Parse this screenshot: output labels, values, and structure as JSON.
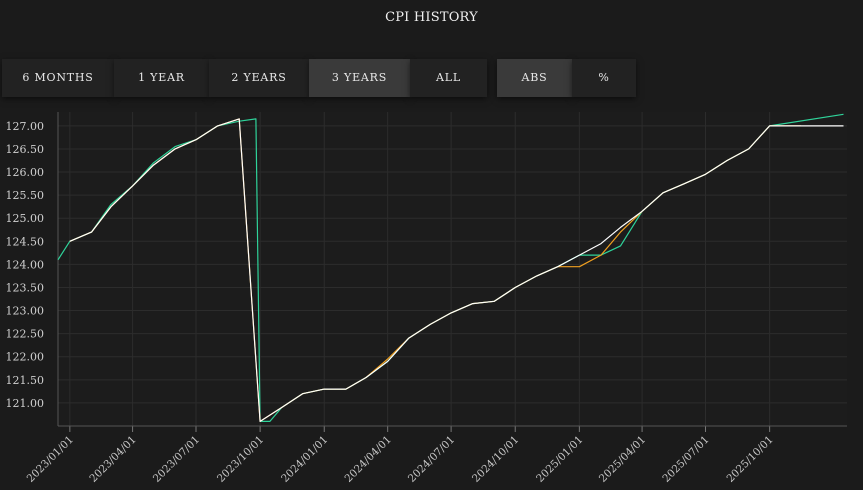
{
  "title": "CPI HISTORY",
  "range_buttons": [
    {
      "label": "6 MONTHS",
      "active": false
    },
    {
      "label": "1 YEAR",
      "active": false
    },
    {
      "label": "2 YEARS",
      "active": false
    },
    {
      "label": "3 YEARS",
      "active": true
    },
    {
      "label": "ALL",
      "active": false
    }
  ],
  "mode_buttons": [
    {
      "label": "ABS",
      "active": true
    },
    {
      "label": "%",
      "active": false
    }
  ],
  "chart_data": {
    "type": "line",
    "ylim": [
      120.5,
      127.3
    ],
    "xlim": [
      "2022-12-15",
      "2026-01-20"
    ],
    "yticks": [
      121.0,
      121.5,
      122.0,
      122.5,
      123.0,
      123.5,
      124.0,
      124.5,
      125.0,
      125.5,
      126.0,
      126.5,
      127.0
    ],
    "ytick_labels": [
      "121.00",
      "121.50",
      "122.00",
      "122.50",
      "123.00",
      "123.50",
      "124.00",
      "124.50",
      "125.00",
      "125.50",
      "126.00",
      "126.50",
      "127.00"
    ],
    "xticks": [
      "2023-01-01",
      "2023-04-01",
      "2023-07-01",
      "2023-10-01",
      "2024-01-01",
      "2024-04-01",
      "2024-07-01",
      "2024-10-01",
      "2025-01-01",
      "2025-04-01",
      "2025-07-01",
      "2025-10-01"
    ],
    "xtick_labels": [
      "2023/01/01",
      "2023/04/01",
      "2023/07/01",
      "2023/10/01",
      "2024/01/01",
      "2024/04/01",
      "2024/07/01",
      "2024/10/01",
      "2025/01/01",
      "2025/04/01",
      "2025/07/01",
      "2025/10/01"
    ],
    "grid": true,
    "series": [
      {
        "color": "#2fd39a",
        "points": [
          [
            "2022-12-15",
            124.1
          ],
          [
            "2023-01-01",
            124.5
          ],
          [
            "2023-02-01",
            124.7
          ],
          [
            "2023-03-01",
            125.3
          ],
          [
            "2023-04-01",
            125.7
          ],
          [
            "2023-05-01",
            126.2
          ],
          [
            "2023-06-01",
            126.55
          ],
          [
            "2023-07-01",
            126.7
          ],
          [
            "2023-08-01",
            127.0
          ],
          [
            "2023-09-01",
            127.1
          ],
          [
            "2023-09-25",
            127.15
          ],
          [
            "2023-10-01",
            120.6
          ],
          [
            "2023-10-15",
            120.6
          ],
          [
            "2023-11-01",
            120.9
          ],
          [
            "2023-12-01",
            121.2
          ],
          [
            "2024-01-01",
            121.3
          ],
          [
            "2024-02-01",
            121.3
          ],
          [
            "2024-03-01",
            121.55
          ],
          [
            "2024-04-01",
            121.9
          ],
          [
            "2024-05-01",
            122.4
          ],
          [
            "2024-06-01",
            122.7
          ],
          [
            "2024-07-01",
            122.95
          ],
          [
            "2024-08-01",
            123.15
          ],
          [
            "2024-09-01",
            123.2
          ],
          [
            "2024-10-01",
            123.5
          ],
          [
            "2024-11-01",
            123.75
          ],
          [
            "2024-12-01",
            123.95
          ],
          [
            "2025-01-01",
            124.2
          ],
          [
            "2025-02-01",
            124.2
          ],
          [
            "2025-03-01",
            124.4
          ],
          [
            "2025-04-01",
            125.15
          ],
          [
            "2025-05-01",
            125.55
          ],
          [
            "2025-06-01",
            125.75
          ],
          [
            "2025-07-01",
            125.95
          ],
          [
            "2025-08-01",
            126.25
          ],
          [
            "2025-09-01",
            126.5
          ],
          [
            "2025-10-01",
            127.0
          ],
          [
            "2026-01-15",
            127.25
          ]
        ]
      },
      {
        "color": "#f0a020",
        "points": [
          [
            "2023-01-01",
            124.5
          ],
          [
            "2023-02-01",
            124.7
          ],
          [
            "2023-03-01",
            125.25
          ],
          [
            "2023-04-01",
            125.7
          ],
          [
            "2023-05-01",
            126.15
          ],
          [
            "2023-06-01",
            126.5
          ],
          [
            "2023-07-01",
            126.7
          ],
          [
            "2023-08-01",
            127.0
          ],
          [
            "2023-09-01",
            127.15
          ],
          [
            "2023-10-01",
            120.6
          ],
          [
            "2023-11-01",
            120.9
          ],
          [
            "2023-12-01",
            121.2
          ],
          [
            "2024-01-01",
            121.3
          ],
          [
            "2024-02-01",
            121.3
          ],
          [
            "2024-03-01",
            121.55
          ],
          [
            "2024-04-01",
            121.95
          ],
          [
            "2024-05-01",
            122.4
          ],
          [
            "2024-06-01",
            122.7
          ],
          [
            "2024-07-01",
            122.95
          ],
          [
            "2024-08-01",
            123.15
          ],
          [
            "2024-09-01",
            123.2
          ],
          [
            "2024-10-01",
            123.5
          ],
          [
            "2024-11-01",
            123.75
          ],
          [
            "2024-12-01",
            123.95
          ],
          [
            "2025-01-01",
            123.95
          ],
          [
            "2025-02-01",
            124.2
          ],
          [
            "2025-03-01",
            124.7
          ],
          [
            "2025-04-01",
            125.15
          ],
          [
            "2025-05-01",
            125.55
          ],
          [
            "2025-06-01",
            125.75
          ],
          [
            "2025-07-01",
            125.95
          ],
          [
            "2025-08-01",
            126.25
          ],
          [
            "2025-09-01",
            126.5
          ],
          [
            "2025-10-01",
            127.0
          ],
          [
            "2025-11-15",
            127.0
          ]
        ]
      },
      {
        "color": "#ffffff",
        "points": [
          [
            "2023-01-01",
            124.5
          ],
          [
            "2023-02-01",
            124.7
          ],
          [
            "2023-03-01",
            125.25
          ],
          [
            "2023-04-01",
            125.7
          ],
          [
            "2023-05-01",
            126.15
          ],
          [
            "2023-06-01",
            126.5
          ],
          [
            "2023-07-01",
            126.7
          ],
          [
            "2023-08-01",
            127.0
          ],
          [
            "2023-09-01",
            127.15
          ],
          [
            "2023-10-01",
            120.6
          ],
          [
            "2023-11-01",
            120.9
          ],
          [
            "2023-12-01",
            121.2
          ],
          [
            "2024-01-01",
            121.3
          ],
          [
            "2024-02-01",
            121.3
          ],
          [
            "2024-03-01",
            121.55
          ],
          [
            "2024-04-01",
            121.9
          ],
          [
            "2024-05-01",
            122.4
          ],
          [
            "2024-06-01",
            122.7
          ],
          [
            "2024-07-01",
            122.95
          ],
          [
            "2024-08-01",
            123.15
          ],
          [
            "2024-09-01",
            123.2
          ],
          [
            "2024-10-01",
            123.5
          ],
          [
            "2024-11-01",
            123.75
          ],
          [
            "2024-12-01",
            123.95
          ],
          [
            "2025-01-01",
            124.2
          ],
          [
            "2025-02-01",
            124.45
          ],
          [
            "2025-03-01",
            124.8
          ],
          [
            "2025-04-01",
            125.15
          ],
          [
            "2025-05-01",
            125.55
          ],
          [
            "2025-06-01",
            125.75
          ],
          [
            "2025-07-01",
            125.95
          ],
          [
            "2025-08-01",
            126.25
          ],
          [
            "2025-09-01",
            126.5
          ],
          [
            "2025-10-01",
            127.0
          ],
          [
            "2026-01-15",
            127.0
          ]
        ]
      }
    ]
  }
}
